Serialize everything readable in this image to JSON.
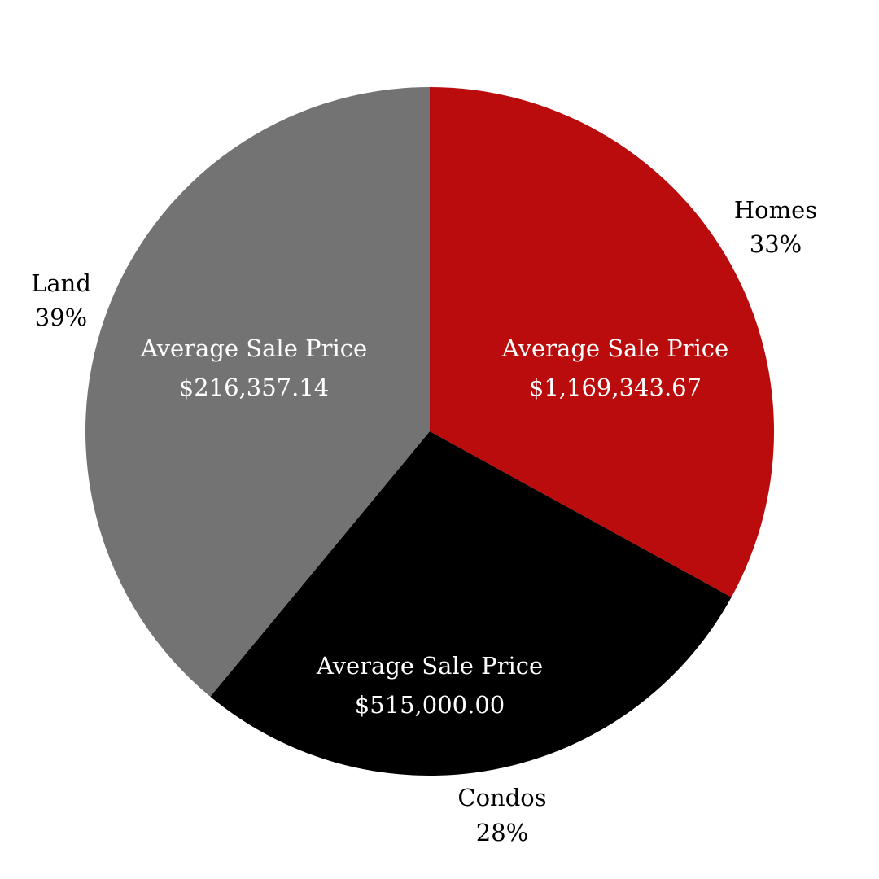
{
  "chart_data": {
    "type": "pie",
    "slices": [
      {
        "category": "Homes",
        "percent_label": "33%",
        "value": 33,
        "inner_title": "Average Sale Price",
        "inner_value": "$1,169,343.67",
        "color": "#BA0C0C"
      },
      {
        "category": "Condos",
        "percent_label": "28%",
        "value": 28,
        "inner_title": "Average Sale Price",
        "inner_value": "$515,000.00",
        "color": "#000000"
      },
      {
        "category": "Land",
        "percent_label": "39%",
        "value": 39,
        "inner_title": "Average Sale Price",
        "inner_value": "$216,357.14",
        "color": "#737373"
      }
    ],
    "start": "12 o'clock",
    "direction": "clockwise",
    "legend": "none"
  }
}
